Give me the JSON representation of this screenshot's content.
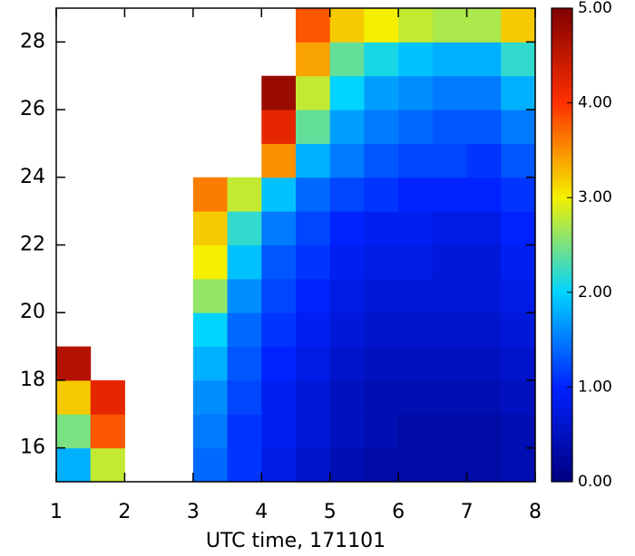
{
  "chart_data": {
    "type": "heatmap",
    "x_label": "UTC time, 171101",
    "x_edges": [
      1,
      1.5,
      2,
      2.5,
      3,
      3.5,
      4,
      4.5,
      5,
      5.5,
      6,
      6.5,
      7,
      7.5,
      8
    ],
    "y_edges": [
      15,
      16,
      17,
      18,
      19,
      20,
      21,
      22,
      23,
      24,
      25,
      26,
      27,
      28,
      29
    ],
    "z": [
      [
        1.8,
        2.8,
        null,
        null,
        1.4,
        1.1,
        0.8,
        0.6,
        0.4,
        0.3,
        0.3,
        0.3,
        0.3,
        0.4
      ],
      [
        2.5,
        3.8,
        null,
        null,
        1.5,
        1.1,
        0.9,
        0.7,
        0.5,
        0.4,
        0.3,
        0.3,
        0.3,
        0.4
      ],
      [
        3.2,
        4.2,
        null,
        null,
        1.6,
        1.2,
        0.9,
        0.7,
        0.5,
        0.4,
        0.4,
        0.4,
        0.4,
        0.5
      ],
      [
        4.6,
        null,
        null,
        null,
        1.8,
        1.3,
        1.0,
        0.8,
        0.6,
        0.5,
        0.5,
        0.5,
        0.5,
        0.6
      ],
      [
        null,
        null,
        null,
        null,
        2.0,
        1.4,
        1.1,
        0.9,
        0.7,
        0.6,
        0.6,
        0.6,
        0.6,
        0.7
      ],
      [
        null,
        null,
        null,
        null,
        2.6,
        1.6,
        1.2,
        1.0,
        0.8,
        0.7,
        0.7,
        0.7,
        0.7,
        0.8
      ],
      [
        null,
        null,
        null,
        null,
        3.0,
        1.9,
        1.3,
        1.1,
        0.9,
        0.8,
        0.8,
        0.7,
        0.7,
        0.9
      ],
      [
        null,
        null,
        null,
        null,
        3.2,
        2.2,
        1.5,
        1.2,
        1.0,
        0.9,
        0.9,
        0.8,
        0.8,
        1.0
      ],
      [
        null,
        null,
        null,
        null,
        3.6,
        2.8,
        1.9,
        1.4,
        1.2,
        1.1,
        1.0,
        1.0,
        1.0,
        1.1
      ],
      [
        null,
        null,
        null,
        null,
        null,
        null,
        3.5,
        1.8,
        1.5,
        1.3,
        1.2,
        1.2,
        1.1,
        1.3
      ],
      [
        null,
        null,
        null,
        null,
        null,
        null,
        4.2,
        2.4,
        1.7,
        1.5,
        1.4,
        1.3,
        1.3,
        1.5
      ],
      [
        null,
        null,
        null,
        null,
        null,
        null,
        4.8,
        2.8,
        2.0,
        1.7,
        1.6,
        1.5,
        1.5,
        1.8
      ],
      [
        null,
        null,
        null,
        null,
        null,
        null,
        null,
        3.4,
        2.4,
        2.1,
        1.9,
        1.8,
        1.8,
        2.2
      ],
      [
        null,
        null,
        null,
        null,
        null,
        null,
        null,
        3.8,
        3.2,
        3.0,
        2.8,
        2.7,
        2.7,
        3.2
      ]
    ],
    "xlim": [
      1,
      8
    ],
    "xticks": [
      1,
      2,
      3,
      4,
      5,
      6,
      7,
      8
    ],
    "ylim": [
      15,
      29
    ],
    "yticks": [
      16,
      18,
      20,
      22,
      24,
      26,
      28
    ],
    "colorscale": [
      "#00007f",
      "#0022ff",
      "#00d4ff",
      "#f4f000",
      "#ff3000",
      "#800000"
    ],
    "clim": [
      0,
      5
    ],
    "cticks": [
      {
        "value": 0,
        "label": "0.00"
      },
      {
        "value": 1,
        "label": "1.00"
      },
      {
        "value": 2,
        "label": "2.00"
      },
      {
        "value": 3,
        "label": "3.00"
      },
      {
        "value": 4,
        "label": "4.00"
      },
      {
        "value": 5,
        "label": "5.00"
      }
    ]
  }
}
